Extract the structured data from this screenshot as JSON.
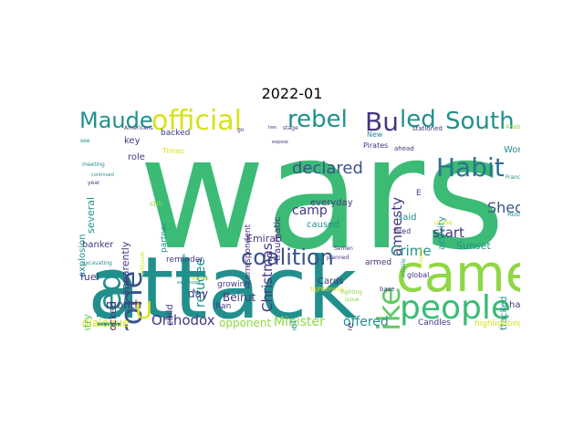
{
  "title": "2022-01",
  "colors": {
    "green": "#3bbb76",
    "teal": "#21908d",
    "blue": "#3a538b",
    "lime": "#8fd744",
    "navy": "#453781",
    "purple": "#472d7b",
    "cyan": "#2c728e",
    "yellow": "#d8e219",
    "seafoam": "#5ec962"
  },
  "words": [
    {
      "text": "wars",
      "color": "green"
    },
    {
      "text": "attack",
      "color": "teal"
    },
    {
      "text": "came",
      "color": "lime"
    },
    {
      "text": "official",
      "color": "yellow"
    },
    {
      "text": "Maude",
      "color": "teal"
    },
    {
      "text": "rebel",
      "color": "teal"
    },
    {
      "text": "Bu",
      "color": "navy"
    },
    {
      "text": "led",
      "color": "teal"
    },
    {
      "text": "South",
      "color": "teal"
    },
    {
      "text": "killed",
      "color": "teal"
    },
    {
      "text": "drone",
      "color": "blue"
    },
    {
      "text": "strike",
      "color": "seafoam"
    },
    {
      "text": "Habit",
      "color": "cyan"
    },
    {
      "text": "people",
      "color": "green"
    },
    {
      "text": "coalition",
      "color": "blue"
    },
    {
      "text": "declared",
      "color": "blue"
    },
    {
      "text": "Christmas",
      "color": "navy"
    },
    {
      "text": "amnesty",
      "color": "navy"
    },
    {
      "text": "camp",
      "color": "navy"
    },
    {
      "text": "Shed",
      "color": "blue"
    },
    {
      "text": "start",
      "color": "navy"
    },
    {
      "text": "Crime",
      "color": "teal"
    },
    {
      "text": "refugee",
      "color": "teal"
    },
    {
      "text": "Orthodox",
      "color": "navy"
    },
    {
      "text": "Minister",
      "color": "lime"
    },
    {
      "text": "offered",
      "color": "teal"
    },
    {
      "text": "dialogue",
      "color": "yellow"
    },
    {
      "text": "opponent",
      "color": "lime"
    },
    {
      "text": "U",
      "color": "yellow"
    },
    {
      "text": "month",
      "color": "navy"
    },
    {
      "text": "day",
      "color": "navy"
    },
    {
      "text": "Beirut",
      "color": "navy"
    },
    {
      "text": "Emirati",
      "color": "navy"
    },
    {
      "text": "traumatic",
      "color": "purple"
    },
    {
      "text": "everyday",
      "color": "navy"
    },
    {
      "text": "caused",
      "color": "teal"
    },
    {
      "text": "Cards",
      "color": "navy"
    },
    {
      "text": "internet",
      "color": "teal"
    },
    {
      "text": "destructive",
      "color": "purple"
    },
    {
      "text": "armed",
      "color": "purple"
    },
    {
      "text": "Sunset",
      "color": "teal"
    },
    {
      "text": "activity",
      "color": "teal"
    },
    {
      "text": "attacked",
      "color": "teal"
    },
    {
      "text": "Candles",
      "color": "navy"
    },
    {
      "text": "highlighting",
      "color": "yellow"
    },
    {
      "text": "reminder",
      "color": "navy"
    },
    {
      "text": "growing",
      "color": "navy"
    },
    {
      "text": "child",
      "color": "navy"
    },
    {
      "text": "Ran",
      "color": "navy"
    },
    {
      "text": "knocked",
      "color": "purple"
    },
    {
      "text": "apparently",
      "color": "navy"
    },
    {
      "text": "banker",
      "color": "navy"
    },
    {
      "text": "explosion",
      "color": "teal"
    },
    {
      "text": "several",
      "color": "teal"
    },
    {
      "text": "fuel",
      "color": "navy"
    },
    {
      "text": "country",
      "color": "seafoam"
    },
    {
      "text": "key",
      "color": "navy"
    },
    {
      "text": "role",
      "color": "navy"
    },
    {
      "text": "backed",
      "color": "navy"
    },
    {
      "text": "Times",
      "color": "yellow"
    },
    {
      "text": "correspondent",
      "color": "purple"
    },
    {
      "text": "partner",
      "color": "teal"
    },
    {
      "text": "said",
      "color": "teal"
    },
    {
      "text": "Work",
      "color": "teal"
    },
    {
      "text": "global",
      "color": "navy"
    },
    {
      "text": "ha",
      "color": "navy"
    },
    {
      "text": "fired",
      "color": "purple"
    },
    {
      "text": "base",
      "color": "navy"
    },
    {
      "text": "tightening",
      "color": "yellow"
    },
    {
      "text": "stationed",
      "color": "navy"
    },
    {
      "text": "Pirates",
      "color": "navy"
    },
    {
      "text": "New",
      "color": "teal"
    },
    {
      "text": "ahead",
      "color": "navy"
    },
    {
      "text": "Semen",
      "color": "navy"
    },
    {
      "text": "planned",
      "color": "navy"
    },
    {
      "text": "Russia",
      "color": "teal"
    },
    {
      "text": "still",
      "color": "lime"
    },
    {
      "text": "criticism",
      "color": "yellow"
    },
    {
      "text": "excavating",
      "color": "teal"
    },
    {
      "text": "meeting",
      "color": "teal"
    },
    {
      "text": "Arab",
      "color": "lime"
    },
    {
      "text": "E",
      "color": "navy"
    },
    {
      "text": "go",
      "color": "navy"
    },
    {
      "text": "stage",
      "color": "navy"
    },
    {
      "text": "missile",
      "color": "teal"
    },
    {
      "text": "expose",
      "color": "navy"
    },
    {
      "text": "two",
      "color": "navy"
    },
    {
      "text": "see",
      "color": "teal"
    },
    {
      "text": "Americans",
      "color": "navy"
    },
    {
      "text": "United",
      "color": "yellow"
    },
    {
      "text": "include",
      "color": "teal"
    },
    {
      "text": "Wonder",
      "color": "yellow"
    },
    {
      "text": "fighting",
      "color": "lime"
    },
    {
      "text": "issue",
      "color": "lime"
    },
    {
      "text": "France",
      "color": "teal"
    },
    {
      "text": "year",
      "color": "navy"
    },
    {
      "text": "expressed",
      "color": "teal"
    },
    {
      "text": "continued",
      "color": "teal"
    },
    {
      "text": "schedule",
      "color": "yellow"
    }
  ]
}
